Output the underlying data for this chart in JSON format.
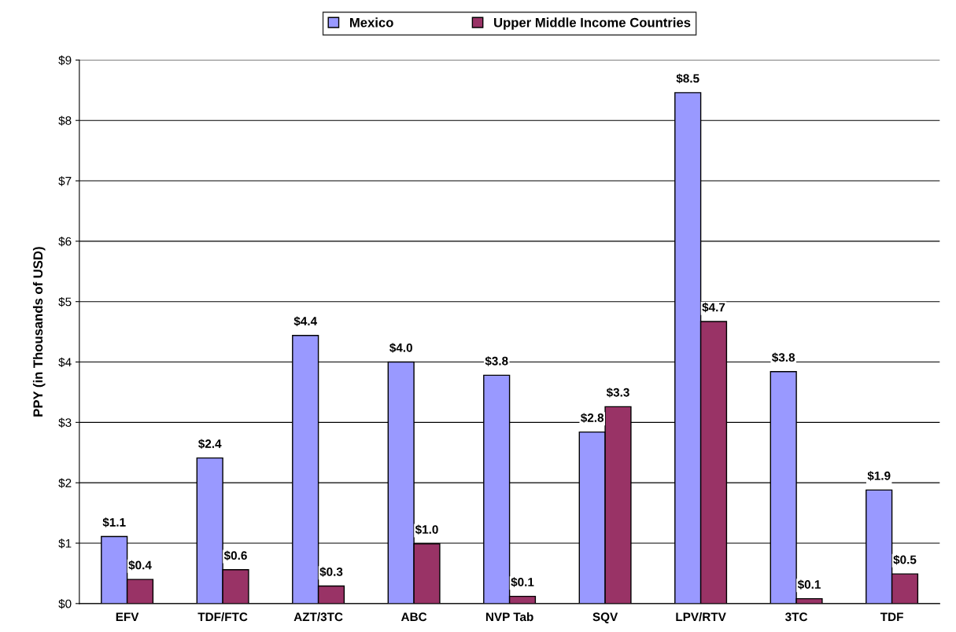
{
  "chart_data": {
    "type": "bar",
    "ylabel": "PPY (in Thousands of USD)",
    "categories": [
      "EFV",
      "TDF/FTC",
      "AZT/3TC",
      "ABC",
      "NVP Tab",
      "SQV",
      "LPV/RTV",
      "3TC",
      "TDF"
    ],
    "series": [
      {
        "name": "Mexico",
        "color": "#9999ff",
        "values": [
          1.11,
          2.41,
          4.44,
          4.0,
          3.78,
          2.84,
          8.46,
          3.84,
          1.88
        ],
        "value_labels": [
          "$1.1",
          "$2.4",
          "$4.4",
          "$4.0",
          "$3.8",
          "$2.8",
          "$8.5",
          "$3.8",
          "$1.9"
        ]
      },
      {
        "name": "Upper Middle Income Countries",
        "color": "#993366",
        "values": [
          0.4,
          0.56,
          0.29,
          0.99,
          0.12,
          3.26,
          4.67,
          0.08,
          0.49
        ],
        "value_labels": [
          "$0.4",
          "$0.6",
          "$0.3",
          "$1.0",
          "$0.1",
          "$3.3",
          "$4.7",
          "$0.1",
          "$0.5"
        ]
      }
    ],
    "ylim": [
      0,
      9
    ],
    "yticks": [
      {
        "value": 0,
        "label": "$0"
      },
      {
        "value": 1,
        "label": "$1"
      },
      {
        "value": 2,
        "label": "$2"
      },
      {
        "value": 3,
        "label": "$3"
      },
      {
        "value": 4,
        "label": "$4"
      },
      {
        "value": 5,
        "label": "$5"
      },
      {
        "value": 6,
        "label": "$6"
      },
      {
        "value": 7,
        "label": "$7"
      },
      {
        "value": 8,
        "label": "$8"
      },
      {
        "value": 9,
        "label": "$9"
      }
    ],
    "grid": "y",
    "legend": "top"
  }
}
